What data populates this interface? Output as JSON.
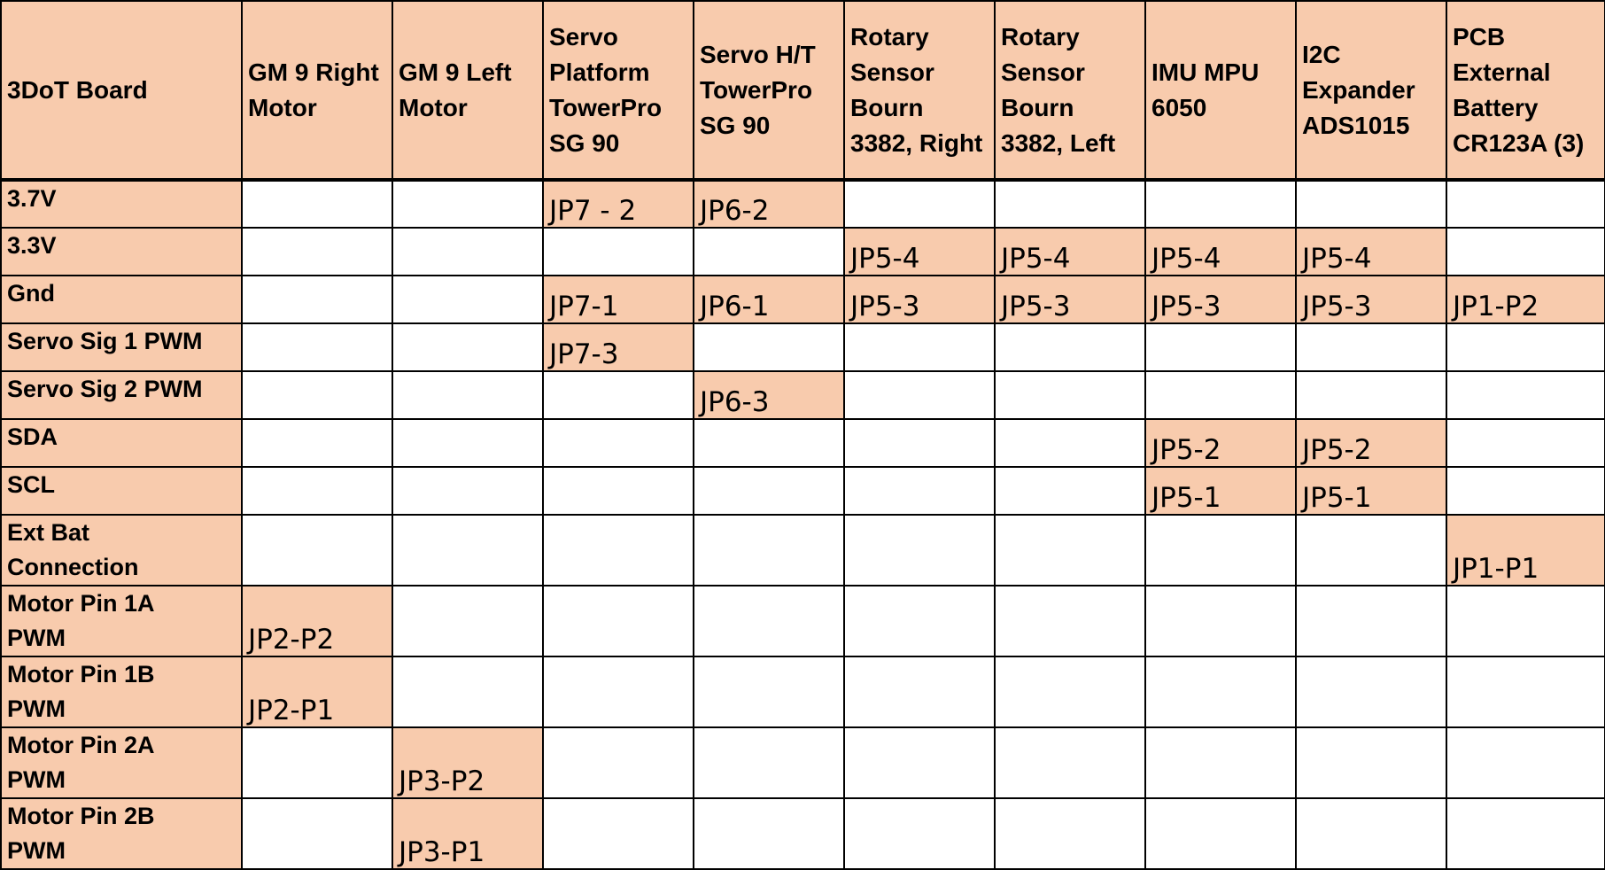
{
  "table": {
    "corner": "3DoT Board",
    "columns": [
      [
        "GM 9 Right",
        "Motor"
      ],
      [
        "GM 9 Left",
        "Motor"
      ],
      [
        "Servo",
        "Platform",
        "TowerPro",
        "SG 90"
      ],
      [
        "Servo H/T",
        "TowerPro",
        "SG 90"
      ],
      [
        "Rotary",
        "Sensor",
        "Bourn",
        "3382, Right"
      ],
      [
        "Rotary",
        "Sensor",
        "Bourn",
        "3382, Left"
      ],
      [
        "IMU MPU",
        "6050"
      ],
      [
        "I2C",
        "Expander",
        "ADS1015"
      ],
      [
        "PCB",
        "External",
        "Battery",
        "CR123A (3)"
      ]
    ],
    "rows": [
      {
        "label": [
          "3.7V"
        ],
        "cells": [
          "",
          "",
          "JP7 - 2",
          "JP6-2",
          "",
          "",
          "",
          "",
          ""
        ]
      },
      {
        "label": [
          "3.3V"
        ],
        "cells": [
          "",
          "",
          "",
          "",
          "JP5-4",
          "JP5-4",
          "JP5-4",
          "JP5-4",
          ""
        ]
      },
      {
        "label": [
          "Gnd"
        ],
        "cells": [
          "",
          "",
          "JP7-1",
          "JP6-1",
          "JP5-3",
          "JP5-3",
          "JP5-3",
          "JP5-3",
          "JP1-P2"
        ]
      },
      {
        "label": [
          "Servo Sig 1 PWM"
        ],
        "cells": [
          "",
          "",
          "JP7-3",
          "",
          "",
          "",
          "",
          "",
          ""
        ]
      },
      {
        "label": [
          "Servo Sig 2 PWM"
        ],
        "cells": [
          "",
          "",
          "",
          "JP6-3",
          "",
          "",
          "",
          "",
          ""
        ]
      },
      {
        "label": [
          "SDA"
        ],
        "cells": [
          "",
          "",
          "",
          "",
          "",
          "",
          "JP5-2",
          "JP5-2",
          ""
        ]
      },
      {
        "label": [
          "SCL"
        ],
        "cells": [
          "",
          "",
          "",
          "",
          "",
          "",
          "JP5-1",
          "JP5-1",
          ""
        ]
      },
      {
        "label": [
          "Ext Bat",
          "Connection"
        ],
        "cells": [
          "",
          "",
          "",
          "",
          "",
          "",
          "",
          "",
          "JP1-P1"
        ]
      },
      {
        "label": [
          "Motor Pin 1A",
          "PWM"
        ],
        "cells": [
          "JP2-P2",
          "",
          "",
          "",
          "",
          "",
          "",
          "",
          ""
        ]
      },
      {
        "label": [
          "Motor Pin 1B",
          "PWM"
        ],
        "cells": [
          "JP2-P1",
          "",
          "",
          "",
          "",
          "",
          "",
          "",
          ""
        ]
      },
      {
        "label": [
          "Motor Pin 2A",
          "PWM"
        ],
        "cells": [
          "",
          "JP3-P2",
          "",
          "",
          "",
          "",
          "",
          "",
          ""
        ]
      },
      {
        "label": [
          "Motor Pin 2B",
          "PWM"
        ],
        "cells": [
          "",
          "JP3-P1",
          "",
          "",
          "",
          "",
          "",
          "",
          ""
        ]
      }
    ]
  },
  "colors": {
    "fill": "#F8CBAD",
    "empty": "#FFFFFF",
    "border": "#000000"
  }
}
